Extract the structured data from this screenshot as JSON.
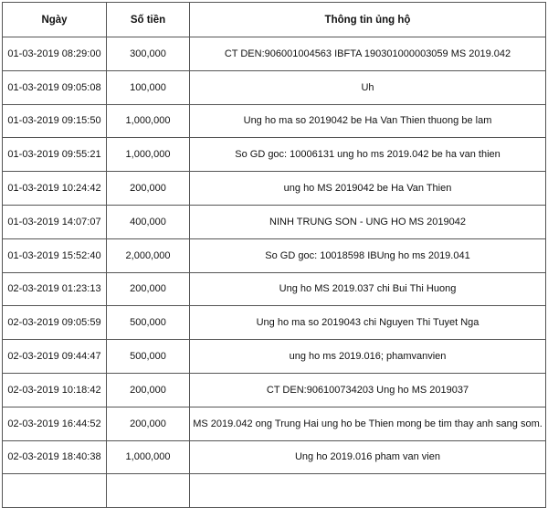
{
  "headers": [
    "Ngày",
    "Số tiền",
    "Thông tin ủng hộ"
  ],
  "rows": [
    [
      "01-03-2019 08:29:00",
      "300,000",
      "CT DEN:906001004563 IBFTA 190301000003059 MS 2019.042"
    ],
    [
      "01-03-2019 09:05:08",
      "100,000",
      "Uh"
    ],
    [
      "01-03-2019 09:15:50",
      "1,000,000",
      "Ung ho ma so 2019042 be Ha Van Thien thuong be lam"
    ],
    [
      "01-03-2019 09:55:21",
      "1,000,000",
      "So GD goc: 10006131 ung ho ms 2019.042 be ha van thien"
    ],
    [
      "01-03-2019 10:24:42",
      "200,000",
      "ung ho MS 2019042 be Ha Van Thien"
    ],
    [
      "01-03-2019 14:07:07",
      "400,000",
      "NINH TRUNG SON - UNG HO MS 2019042"
    ],
    [
      "01-03-2019 15:52:40",
      "2,000,000",
      "So GD goc: 10018598 IBUng ho ms 2019.041"
    ],
    [
      "02-03-2019 01:23:13",
      "200,000",
      "Ung ho MS 2019.037 chi Bui Thi Huong"
    ],
    [
      "02-03-2019 09:05:59",
      "500,000",
      "Ung ho ma so 2019043 chi Nguyen Thi Tuyet Nga"
    ],
    [
      "02-03-2019 09:44:47",
      "500,000",
      "ung ho ms 2019.016; phamvanvien"
    ],
    [
      "02-03-2019 10:18:42",
      "200,000",
      "CT DEN:906100734203 Ung ho MS 2019037"
    ],
    [
      "02-03-2019 16:44:52",
      "200,000",
      "MS  2019.042 ong Trung Hai ung ho be Thien mong be tim thay anh sang som."
    ],
    [
      "02-03-2019 18:40:38",
      "1,000,000",
      "Ung ho 2019.016 pham van vien"
    ]
  ]
}
